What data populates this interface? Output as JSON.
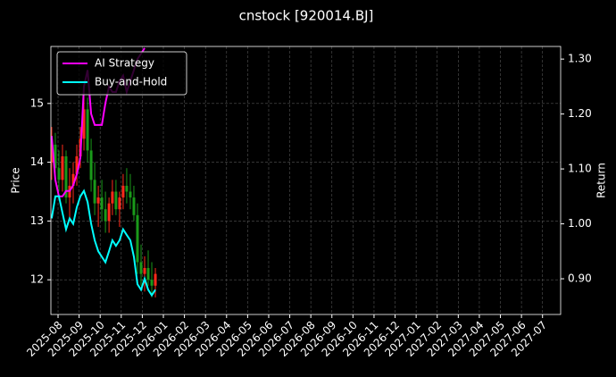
{
  "chart_data": {
    "type": "candlestick",
    "title": "cnstock [920014.BJ]",
    "ylabel": "Price",
    "y2label": "Return",
    "x": [
      -0.3,
      -0.13,
      0.04,
      0.21,
      0.38,
      0.55,
      0.72,
      0.89,
      1.06,
      1.23,
      1.4,
      1.57,
      1.74,
      1.91,
      2.08,
      2.25,
      2.42,
      2.58,
      2.75,
      2.92,
      3.09,
      3.26,
      3.43,
      3.6,
      3.77,
      3.94,
      4.11,
      4.28,
      4.45,
      4.62
    ],
    "ohlc": {
      "open": [
        14.0,
        14.3,
        13.9,
        13.7,
        14.1,
        13.4,
        13.6,
        13.8,
        14.1,
        14.4,
        14.9,
        14.2,
        13.7,
        13.3,
        13.4,
        13.2,
        13.0,
        13.3,
        13.5,
        13.2,
        13.4,
        13.6,
        13.5,
        13.4,
        13.1,
        12.3,
        12.1,
        12.2,
        12.0,
        11.9
      ],
      "high": [
        14.6,
        14.5,
        14.2,
        14.3,
        14.2,
        13.9,
        14.0,
        14.3,
        14.6,
        15.2,
        15.1,
        14.4,
        14.0,
        13.6,
        13.7,
        13.5,
        13.4,
        13.7,
        13.7,
        13.5,
        13.8,
        13.9,
        13.8,
        13.6,
        13.3,
        12.6,
        12.4,
        12.5,
        12.3,
        12.2
      ],
      "low": [
        13.7,
        13.8,
        13.5,
        13.5,
        13.3,
        13.0,
        13.3,
        13.6,
        13.9,
        14.2,
        14.0,
        13.5,
        13.1,
        12.9,
        13.0,
        12.8,
        12.8,
        13.1,
        13.1,
        12.9,
        13.2,
        13.3,
        13.2,
        13.0,
        12.1,
        11.9,
        11.8,
        11.9,
        11.7,
        11.7
      ],
      "close": [
        14.3,
        13.9,
        13.7,
        14.1,
        13.4,
        13.6,
        13.8,
        14.1,
        14.4,
        14.9,
        14.2,
        13.7,
        13.3,
        13.4,
        13.2,
        13.0,
        13.3,
        13.5,
        13.2,
        13.4,
        13.6,
        13.5,
        13.4,
        13.1,
        12.3,
        12.1,
        12.2,
        12.0,
        11.9,
        12.1
      ]
    },
    "up_color": "#ff2a1a",
    "down_color": "#1a9a1a",
    "series": [
      {
        "name": "AI Strategy",
        "color": "#ff00ff",
        "axis": "y2",
        "values": [
          1.16,
          1.08,
          1.05,
          1.05,
          1.06,
          1.06,
          1.07,
          1.09,
          1.12,
          1.25,
          1.28,
          1.2,
          1.18,
          1.18,
          1.18,
          1.22,
          1.25,
          1.24,
          1.24,
          1.26,
          1.27,
          1.24,
          1.26,
          1.28,
          1.3,
          1.31,
          1.32,
          null,
          null,
          null
        ]
      },
      {
        "name": "Buy-and-Hold",
        "color": "#00ffff",
        "axis": "y2",
        "values": [
          1.01,
          1.05,
          1.05,
          1.02,
          0.99,
          1.01,
          1.0,
          1.03,
          1.05,
          1.06,
          1.04,
          1.0,
          0.97,
          0.95,
          0.94,
          0.93,
          0.95,
          0.97,
          0.96,
          0.97,
          0.99,
          0.98,
          0.97,
          0.94,
          0.89,
          0.88,
          0.9,
          0.88,
          0.87,
          0.88
        ]
      }
    ],
    "xlim": [
      -0.34,
      23.86
    ],
    "xticks": [
      {
        "value": 0,
        "label": "2025-08"
      },
      {
        "value": 1,
        "label": "2025-09"
      },
      {
        "value": 2,
        "label": "2025-10"
      },
      {
        "value": 3,
        "label": "2025-11"
      },
      {
        "value": 4,
        "label": "2025-12"
      },
      {
        "value": 5,
        "label": "2026-01"
      },
      {
        "value": 6,
        "label": "2026-02"
      },
      {
        "value": 7,
        "label": "2026-03"
      },
      {
        "value": 8,
        "label": "2026-04"
      },
      {
        "value": 9,
        "label": "2026-05"
      },
      {
        "value": 10,
        "label": "2026-06"
      },
      {
        "value": 11,
        "label": "2026-07"
      },
      {
        "value": 12,
        "label": "2026-08"
      },
      {
        "value": 13,
        "label": "2026-09"
      },
      {
        "value": 14,
        "label": "2026-10"
      },
      {
        "value": 15,
        "label": "2026-11"
      },
      {
        "value": 16,
        "label": "2026-12"
      },
      {
        "value": 17,
        "label": "2027-01"
      },
      {
        "value": 18,
        "label": "2027-02"
      },
      {
        "value": 19,
        "label": "2027-03"
      },
      {
        "value": 20,
        "label": "2027-04"
      },
      {
        "value": 21,
        "label": "2027-05"
      },
      {
        "value": 22,
        "label": "2027-06"
      },
      {
        "value": 23,
        "label": "2027-07"
      }
    ],
    "ylim": [
      11.41,
      15.97
    ],
    "yticks": [
      12,
      13,
      14,
      15
    ],
    "y2lim": [
      0.835,
      1.323
    ],
    "y2ticks": [
      {
        "value": 0.9,
        "label": "0.90"
      },
      {
        "value": 1.0,
        "label": "1.00"
      },
      {
        "value": 1.1,
        "label": "1.10"
      },
      {
        "value": 1.2,
        "label": "1.20"
      },
      {
        "value": 1.3,
        "label": "1.30"
      }
    ],
    "grid": true,
    "legend": "upper left"
  }
}
